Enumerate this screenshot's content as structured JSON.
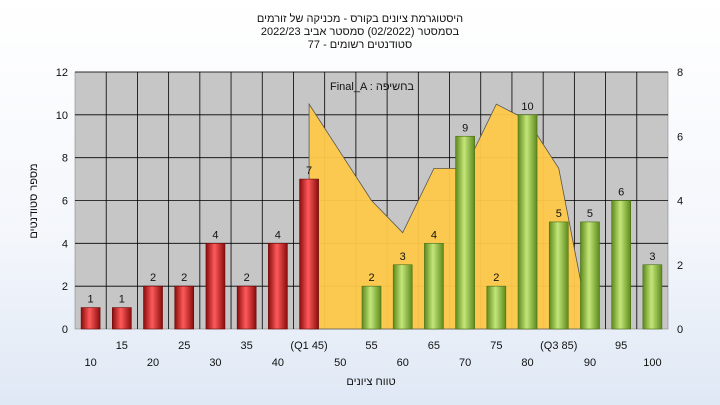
{
  "chart_data": {
    "type": "bar",
    "title_lines": [
      "היסטוגרמת ציונים בקורס - מכניקה של זורמים",
      "בסמסטר  (02/2022)  סמסטר אביב 2022/23",
      "סטודנטים רשומים - 77"
    ],
    "legend_text": "Final_A : בחשיפה",
    "xlabel": "טווח ציונים",
    "ylabel": "מספר סטודנטים",
    "ylim": [
      0,
      12
    ],
    "y_ticks": [
      0,
      2,
      4,
      6,
      8,
      10,
      12
    ],
    "y2lim": [
      0,
      8
    ],
    "y2_ticks": [
      0,
      2,
      4,
      6,
      8
    ],
    "grid": true,
    "categories": [
      "10",
      "15",
      "20",
      "25",
      "30",
      "35",
      "40",
      "(Q1 45)",
      "50",
      "55",
      "60",
      "65",
      "70",
      "75",
      "80",
      "(Q3 85)",
      "90",
      "95",
      "100"
    ],
    "x_label_rows": [
      "low",
      "high",
      "low",
      "high",
      "low",
      "high",
      "low",
      "high",
      "low",
      "high",
      "low",
      "high",
      "low",
      "high",
      "low",
      "high",
      "low",
      "high",
      "low"
    ],
    "series": [
      {
        "values": [
          1,
          1,
          2,
          2,
          4,
          2,
          4,
          7,
          0,
          2,
          3,
          4,
          9,
          2,
          10,
          5,
          5,
          6,
          3
        ],
        "bar_colors": [
          "red",
          "red",
          "red",
          "red",
          "red",
          "red",
          "red",
          "red",
          "none",
          "green",
          "green",
          "green",
          "green",
          "green",
          "green",
          "green",
          "green",
          "green",
          "green"
        ],
        "labels": [
          "1",
          "1",
          "2",
          "2",
          "4",
          "2",
          "4",
          "7",
          "",
          "2",
          "3",
          "4",
          "9",
          "2",
          "10",
          "5",
          "5",
          "6",
          "3"
        ]
      }
    ],
    "area_series": {
      "axis": "secondary",
      "values": [
        null,
        null,
        null,
        null,
        null,
        null,
        null,
        7,
        5.5,
        4,
        3,
        5,
        5,
        7,
        6.5,
        5,
        0,
        null,
        null
      ]
    },
    "colors": {
      "red_bar": "#d42020",
      "green_bar": "#8ab83a",
      "area": "#ffc94a",
      "plot_bg": "#c6c6c6",
      "grid": "#000000"
    }
  }
}
